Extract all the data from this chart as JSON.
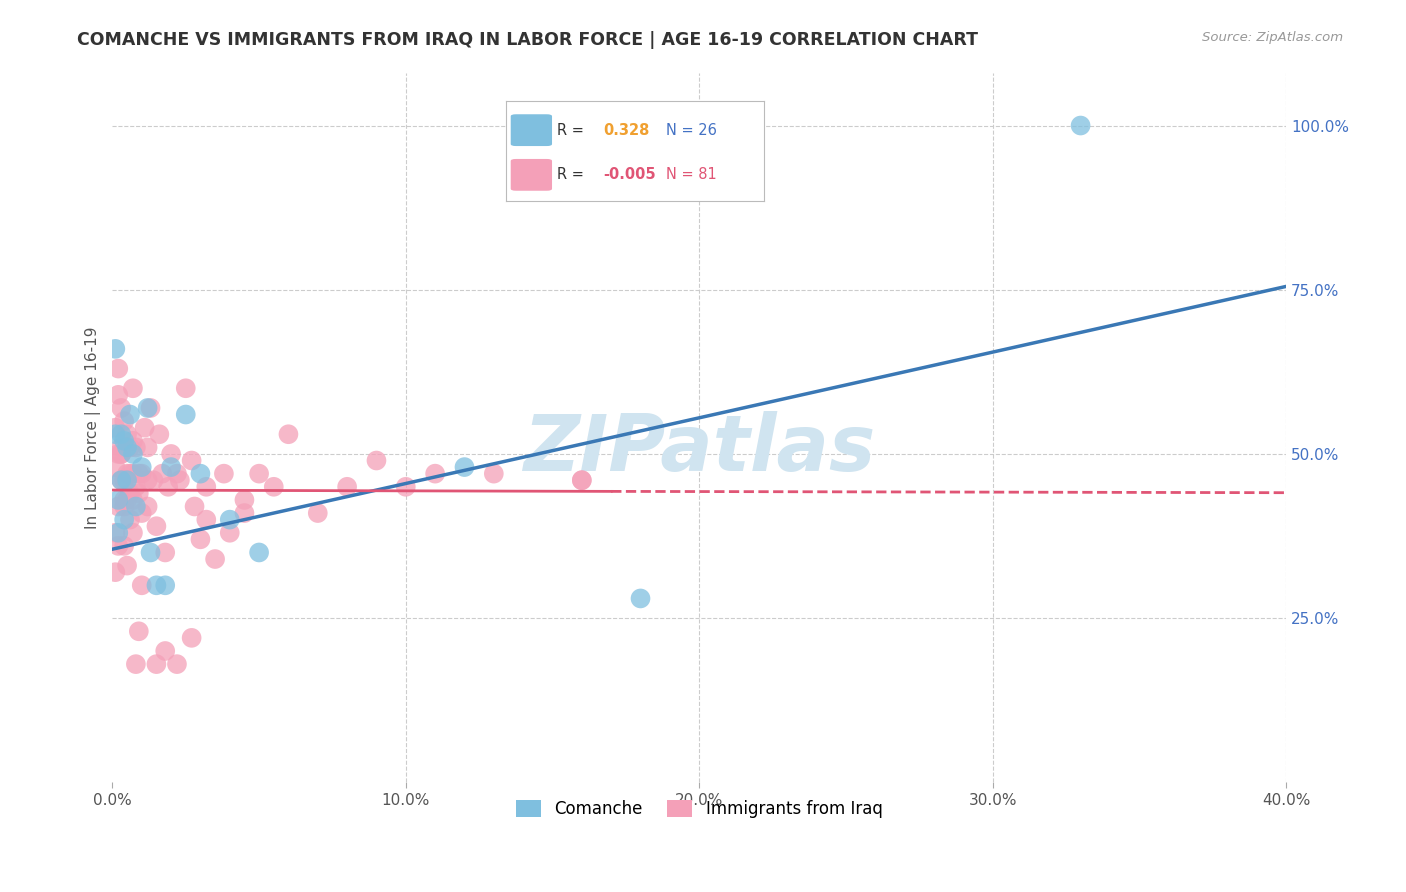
{
  "title": "COMANCHE VS IMMIGRANTS FROM IRAQ IN LABOR FORCE | AGE 16-19 CORRELATION CHART",
  "source": "Source: ZipAtlas.com",
  "ylabel": "In Labor Force | Age 16-19",
  "xlim": [
    0.0,
    0.4
  ],
  "ylim": [
    0.0,
    1.08
  ],
  "xticks": [
    0.0,
    0.1,
    0.2,
    0.3,
    0.4
  ],
  "xtick_labels": [
    "0.0%",
    "10.0%",
    "20.0%",
    "30.0%",
    "40.0%"
  ],
  "yticks_right": [
    0.25,
    0.5,
    0.75,
    1.0
  ],
  "ytick_labels_right": [
    "25.0%",
    "50.0%",
    "75.0%",
    "100.0%"
  ],
  "legend1_r": "0.328",
  "legend1_n": "26",
  "legend2_r": "-0.005",
  "legend2_n": "81",
  "blue_color": "#7fbfdf",
  "pink_color": "#f4a0b8",
  "blue_line_color": "#3a78b5",
  "pink_line_color": "#e05575",
  "watermark": "ZIPatlas",
  "watermark_color": "#d0e4f0",
  "background_color": "#ffffff",
  "grid_color": "#cccccc",
  "blue_line_x0": 0.0,
  "blue_line_y0": 0.355,
  "blue_line_x1": 0.4,
  "blue_line_y1": 0.755,
  "pink_line_solid_x0": 0.0,
  "pink_line_solid_y0": 0.445,
  "pink_line_solid_x1": 0.17,
  "pink_line_solid_y1": 0.443,
  "pink_line_dash_x0": 0.17,
  "pink_line_dash_y0": 0.443,
  "pink_line_dash_x1": 0.4,
  "pink_line_dash_y1": 0.441,
  "comanche_x": [
    0.001,
    0.001,
    0.002,
    0.002,
    0.003,
    0.003,
    0.004,
    0.004,
    0.005,
    0.005,
    0.006,
    0.007,
    0.008,
    0.01,
    0.012,
    0.013,
    0.015,
    0.018,
    0.02,
    0.025,
    0.03,
    0.04,
    0.05,
    0.12,
    0.18,
    0.33
  ],
  "comanche_y": [
    0.66,
    0.53,
    0.43,
    0.38,
    0.53,
    0.46,
    0.52,
    0.4,
    0.46,
    0.51,
    0.56,
    0.5,
    0.42,
    0.48,
    0.57,
    0.35,
    0.3,
    0.3,
    0.48,
    0.56,
    0.47,
    0.4,
    0.35,
    0.48,
    0.28,
    1.0
  ],
  "iraq_x": [
    0.001,
    0.001,
    0.002,
    0.002,
    0.002,
    0.003,
    0.003,
    0.003,
    0.003,
    0.004,
    0.004,
    0.004,
    0.005,
    0.005,
    0.005,
    0.006,
    0.006,
    0.006,
    0.007,
    0.007,
    0.007,
    0.007,
    0.008,
    0.008,
    0.009,
    0.009,
    0.01,
    0.01,
    0.011,
    0.012,
    0.012,
    0.013,
    0.014,
    0.015,
    0.016,
    0.017,
    0.018,
    0.019,
    0.02,
    0.022,
    0.023,
    0.025,
    0.027,
    0.028,
    0.03,
    0.032,
    0.035,
    0.038,
    0.04,
    0.045,
    0.05,
    0.055,
    0.06,
    0.07,
    0.08,
    0.09,
    0.1,
    0.11,
    0.13,
    0.16,
    0.001,
    0.001,
    0.002,
    0.002,
    0.003,
    0.004,
    0.004,
    0.005,
    0.006,
    0.007,
    0.008,
    0.009,
    0.01,
    0.012,
    0.015,
    0.018,
    0.022,
    0.027,
    0.032,
    0.045,
    0.16
  ],
  "iraq_y": [
    0.54,
    0.48,
    0.59,
    0.63,
    0.5,
    0.46,
    0.51,
    0.57,
    0.5,
    0.46,
    0.42,
    0.55,
    0.47,
    0.53,
    0.43,
    0.51,
    0.47,
    0.44,
    0.47,
    0.6,
    0.52,
    0.43,
    0.45,
    0.51,
    0.47,
    0.44,
    0.47,
    0.41,
    0.54,
    0.51,
    0.46,
    0.57,
    0.46,
    0.39,
    0.53,
    0.47,
    0.35,
    0.45,
    0.5,
    0.47,
    0.46,
    0.6,
    0.49,
    0.42,
    0.37,
    0.4,
    0.34,
    0.47,
    0.38,
    0.43,
    0.47,
    0.45,
    0.53,
    0.41,
    0.45,
    0.49,
    0.45,
    0.47,
    0.47,
    0.46,
    0.38,
    0.32,
    0.36,
    0.42,
    0.5,
    0.36,
    0.43,
    0.33,
    0.4,
    0.38,
    0.18,
    0.23,
    0.3,
    0.42,
    0.18,
    0.2,
    0.18,
    0.22,
    0.45,
    0.41,
    0.46
  ]
}
